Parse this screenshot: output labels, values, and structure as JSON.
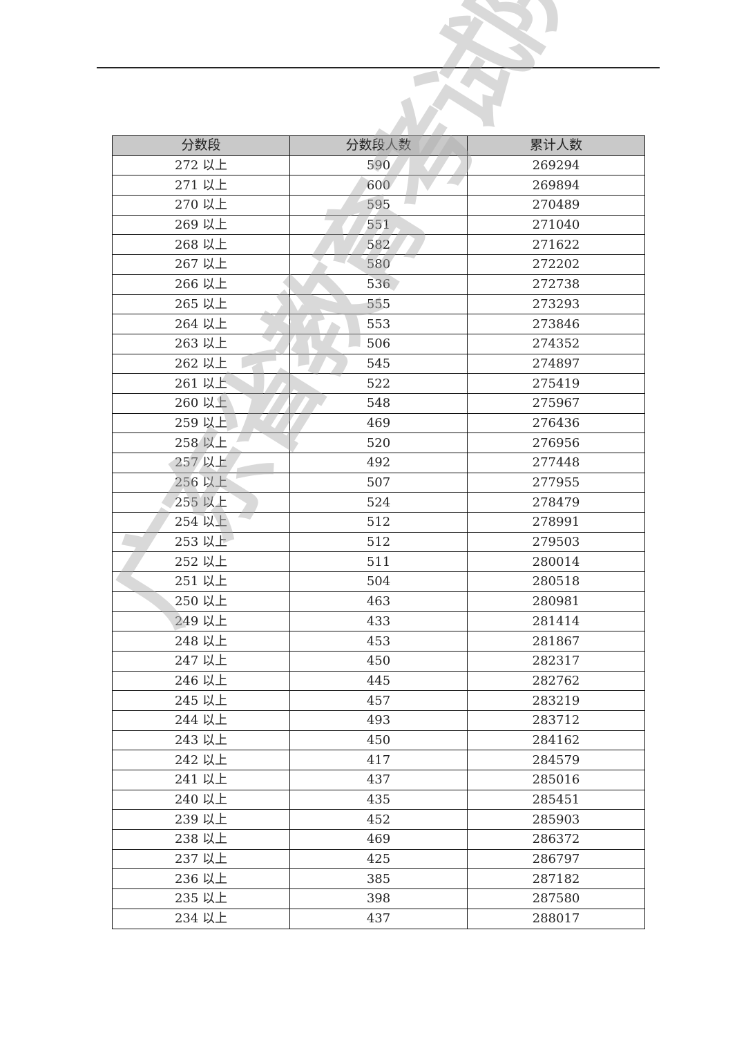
{
  "watermark": "广东省教育考试院",
  "table": {
    "headers": [
      "分数段",
      "分数段人数",
      "累计人数"
    ],
    "rows": [
      [
        "272 以上",
        "590",
        "269294"
      ],
      [
        "271 以上",
        "600",
        "269894"
      ],
      [
        "270 以上",
        "595",
        "270489"
      ],
      [
        "269 以上",
        "551",
        "271040"
      ],
      [
        "268 以上",
        "582",
        "271622"
      ],
      [
        "267 以上",
        "580",
        "272202"
      ],
      [
        "266 以上",
        "536",
        "272738"
      ],
      [
        "265 以上",
        "555",
        "273293"
      ],
      [
        "264 以上",
        "553",
        "273846"
      ],
      [
        "263 以上",
        "506",
        "274352"
      ],
      [
        "262 以上",
        "545",
        "274897"
      ],
      [
        "261 以上",
        "522",
        "275419"
      ],
      [
        "260 以上",
        "548",
        "275967"
      ],
      [
        "259 以上",
        "469",
        "276436"
      ],
      [
        "258 以上",
        "520",
        "276956"
      ],
      [
        "257 以上",
        "492",
        "277448"
      ],
      [
        "256 以上",
        "507",
        "277955"
      ],
      [
        "255 以上",
        "524",
        "278479"
      ],
      [
        "254 以上",
        "512",
        "278991"
      ],
      [
        "253 以上",
        "512",
        "279503"
      ],
      [
        "252 以上",
        "511",
        "280014"
      ],
      [
        "251 以上",
        "504",
        "280518"
      ],
      [
        "250 以上",
        "463",
        "280981"
      ],
      [
        "249 以上",
        "433",
        "281414"
      ],
      [
        "248 以上",
        "453",
        "281867"
      ],
      [
        "247 以上",
        "450",
        "282317"
      ],
      [
        "246 以上",
        "445",
        "282762"
      ],
      [
        "245 以上",
        "457",
        "283219"
      ],
      [
        "244 以上",
        "493",
        "283712"
      ],
      [
        "243 以上",
        "450",
        "284162"
      ],
      [
        "242 以上",
        "417",
        "284579"
      ],
      [
        "241 以上",
        "437",
        "285016"
      ],
      [
        "240 以上",
        "435",
        "285451"
      ],
      [
        "239 以上",
        "452",
        "285903"
      ],
      [
        "238 以上",
        "469",
        "286372"
      ],
      [
        "237 以上",
        "425",
        "286797"
      ],
      [
        "236 以上",
        "385",
        "287182"
      ],
      [
        "235 以上",
        "398",
        "287580"
      ],
      [
        "234 以上",
        "437",
        "288017"
      ]
    ]
  }
}
